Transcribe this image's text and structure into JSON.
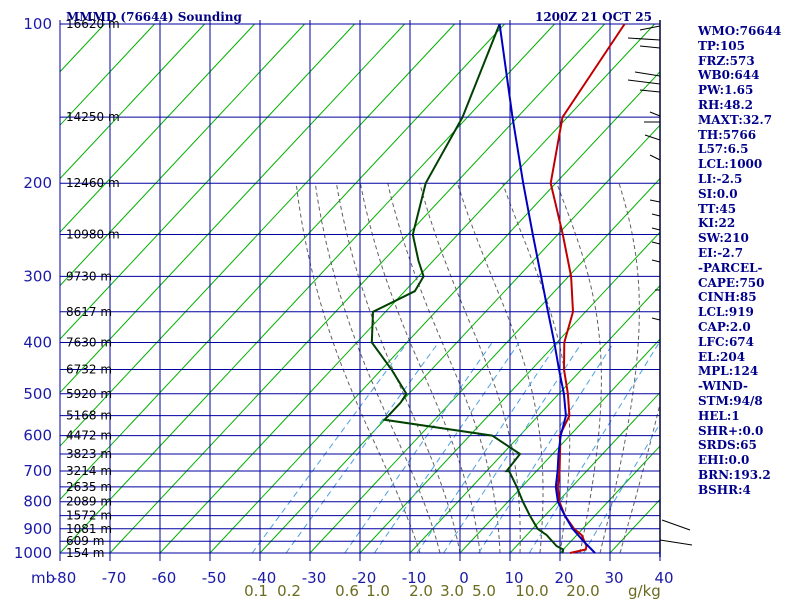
{
  "title": "MMMD (76644) Sounding",
  "date_label": "1200Z 21 OCT 25",
  "chart_data": {
    "type": "skew-t",
    "p_top": 100,
    "p_bottom": 1000,
    "t_min": -80,
    "t_max": 40,
    "pressure_ticks": [
      100,
      200,
      300,
      400,
      500,
      600,
      700,
      800,
      900,
      1000
    ],
    "pressure_unit_label": "mb",
    "temp_ticks": [
      -80,
      -70,
      -60,
      -50,
      -40,
      -30,
      -20,
      -10,
      0,
      10,
      20,
      30,
      40
    ],
    "temp_tick_labels": [
      "-80",
      "-70",
      "-60",
      "-50",
      "-40",
      "-30",
      "-20",
      "-10",
      "0",
      "10",
      "20",
      "30",
      "40"
    ],
    "mixing_ratio_labels": [
      "0.1",
      "0.2",
      "0.6",
      "1.0",
      "2.0",
      "3.0",
      "5.0",
      "10.0",
      "20.0"
    ],
    "mixing_ratio_unit": "g/kg",
    "height_labels": [
      {
        "p": 100,
        "text": "16620 m"
      },
      {
        "p": 150,
        "text": "14250 m"
      },
      {
        "p": 200,
        "text": "12460 m"
      },
      {
        "p": 250,
        "text": "10980 m"
      },
      {
        "p": 300,
        "text": "9730 m"
      },
      {
        "p": 350,
        "text": "8617 m"
      },
      {
        "p": 400,
        "text": "7630 m"
      },
      {
        "p": 450,
        "text": "6732 m"
      },
      {
        "p": 500,
        "text": "5920 m"
      },
      {
        "p": 550,
        "text": "5168 m"
      },
      {
        "p": 600,
        "text": "4472 m"
      },
      {
        "p": 650,
        "text": "3823 m"
      },
      {
        "p": 700,
        "text": "3214 m"
      },
      {
        "p": 750,
        "text": "2635 m"
      },
      {
        "p": 800,
        "text": "2089 m"
      },
      {
        "p": 850,
        "text": "1572 m"
      },
      {
        "p": 900,
        "text": "1081 m"
      },
      {
        "p": 950,
        "text": "609 m"
      },
      {
        "p": 1000,
        "text": "154 m"
      }
    ],
    "series": [
      {
        "name": "temperature",
        "color": "#c00000",
        "points": [
          [
            1000,
            22
          ],
          [
            985,
            24.5
          ],
          [
            970,
            24
          ],
          [
            925,
            21
          ],
          [
            900,
            18.3
          ],
          [
            850,
            14
          ],
          [
            800,
            10.3
          ],
          [
            750,
            7.2
          ],
          [
            700,
            4.6
          ],
          [
            650,
            1.5
          ],
          [
            620,
            -0.5
          ],
          [
            600,
            -2
          ],
          [
            550,
            -3.8
          ],
          [
            500,
            -8.2
          ],
          [
            450,
            -13.5
          ],
          [
            400,
            -18.5
          ],
          [
            350,
            -22.5
          ],
          [
            300,
            -29.5
          ],
          [
            250,
            -39
          ],
          [
            200,
            -51
          ],
          [
            150,
            -61
          ],
          [
            100,
            -66
          ]
        ]
      },
      {
        "name": "dewpoint",
        "color": "#004000",
        "points": [
          [
            1000,
            20.5
          ],
          [
            985,
            20
          ],
          [
            970,
            18
          ],
          [
            925,
            14
          ],
          [
            900,
            11
          ],
          [
            850,
            7
          ],
          [
            800,
            3
          ],
          [
            750,
            -1
          ],
          [
            700,
            -5.5
          ],
          [
            700,
            -6
          ],
          [
            650,
            -6.5
          ],
          [
            600,
            -15.5
          ],
          [
            560,
            -40
          ],
          [
            550,
            -40
          ],
          [
            520,
            -40
          ],
          [
            500,
            -40.5
          ],
          [
            450,
            -48
          ],
          [
            400,
            -57
          ],
          [
            350,
            -62.5
          ],
          [
            320,
            -58
          ],
          [
            300,
            -59
          ],
          [
            280,
            -63
          ],
          [
            250,
            -69
          ],
          [
            200,
            -76
          ],
          [
            150,
            -81
          ],
          [
            100,
            -91
          ]
        ]
      },
      {
        "name": "parcel",
        "color": "#0000c0",
        "points": [
          [
            1000,
            27
          ],
          [
            950,
            22.5
          ],
          [
            900,
            18
          ],
          [
            850,
            14
          ],
          [
            800,
            10
          ],
          [
            750,
            6.8
          ],
          [
            700,
            4.2
          ],
          [
            650,
            1.2
          ],
          [
            600,
            -1.8
          ],
          [
            550,
            -4.5
          ],
          [
            500,
            -9
          ],
          [
            450,
            -14.5
          ],
          [
            400,
            -20.5
          ],
          [
            350,
            -27.5
          ],
          [
            300,
            -35.5
          ],
          [
            250,
            -45
          ],
          [
            200,
            -56.5
          ],
          [
            150,
            -71
          ],
          [
            100,
            -91
          ]
        ]
      }
    ]
  },
  "stats": [
    {
      "text": "WMO:76644"
    },
    {
      "text": "TP:105"
    },
    {
      "text": "FRZ:573"
    },
    {
      "text": "WB0:644"
    },
    {
      "text": "PW:1.65"
    },
    {
      "text": "RH:48.2"
    },
    {
      "text": "MAXT:32.7"
    },
    {
      "text": "TH:5766"
    },
    {
      "text": "L57:6.5"
    },
    {
      "text": "LCL:1000"
    },
    {
      "text": "LI:-2.5"
    },
    {
      "text": "SI:0.0"
    },
    {
      "text": "TT:45"
    },
    {
      "text": "KI:22"
    },
    {
      "text": "SW:210"
    },
    {
      "text": "EI:-2.7"
    },
    {
      "text": "-PARCEL-"
    },
    {
      "text": "CAPE:750"
    },
    {
      "text": "CINH:85"
    },
    {
      "text": "LCL:919"
    },
    {
      "text": "CAP:2.0"
    },
    {
      "text": "LFC:674"
    },
    {
      "text": "EL:204"
    },
    {
      "text": "MPL:124"
    },
    {
      "text": "-WIND-"
    },
    {
      "text": "STM:94/8"
    },
    {
      "text": "HEL:1"
    },
    {
      "text": "SHR+:0.0"
    },
    {
      "text": "SRDS:65"
    },
    {
      "text": "EHI:0.0"
    },
    {
      "text": "BRN:193.2"
    },
    {
      "text": "BSHR:4"
    }
  ],
  "colors": {
    "grid": "#0000a0",
    "dry_adiabat": "#00b000",
    "moist_adiabat": "#606060",
    "mixing_ratio": "#4fa0e0",
    "wind": "#000000"
  }
}
